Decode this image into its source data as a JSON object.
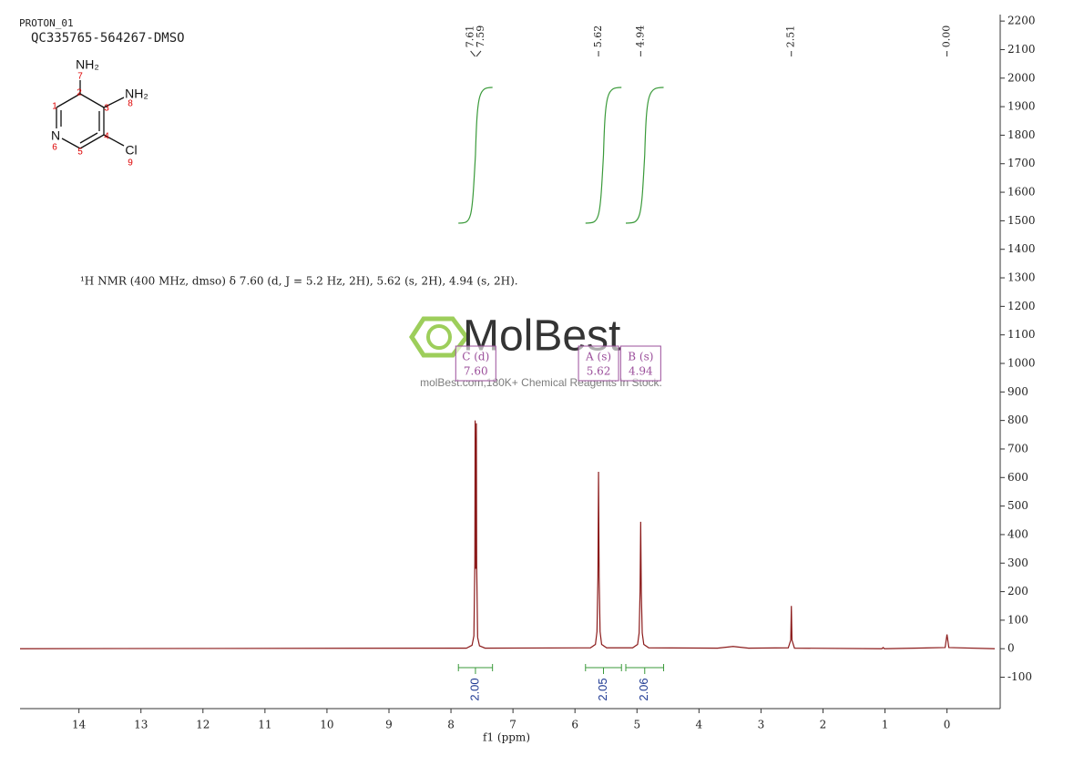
{
  "chart_data": {
    "type": "line",
    "header": "PROTON_01",
    "sample": "QC335765-564267-DMSO",
    "description": "¹H NMR (400 MHz, dmso) δ 7.60 (d, J = 5.2 Hz, 2H), 5.62 (s, 2H), 4.94 (s, 2H).",
    "x_label": "f1  (ppm)",
    "watermark": "MolBest",
    "watermark_subtitle": "molBest.com,180K+ Chemical Reagents In Stock.",
    "color": "#8b1a1a",
    "integral_color": "#3a9a3a",
    "x": [
      14.95,
      7.75,
      7.66,
      7.63,
      7.615,
      7.61,
      7.6,
      7.59,
      7.585,
      7.57,
      7.54,
      7.45,
      5.75,
      5.67,
      5.645,
      5.63,
      5.62,
      5.61,
      5.595,
      5.57,
      5.49,
      5.07,
      4.99,
      4.965,
      4.95,
      4.94,
      4.93,
      4.915,
      4.89,
      4.81,
      3.7,
      3.45,
      3.2,
      2.56,
      2.52,
      2.51,
      2.5,
      2.46,
      1.05,
      1.03,
      1.01,
      0.03,
      0.0,
      -0.03,
      -0.77
    ],
    "values": [
      0,
      2,
      12,
      45,
      300,
      800,
      280,
      790,
      290,
      40,
      10,
      2,
      3,
      15,
      60,
      250,
      620,
      250,
      60,
      15,
      3,
      3,
      15,
      55,
      200,
      445,
      200,
      55,
      15,
      3,
      2,
      8,
      2,
      3,
      30,
      150,
      30,
      2,
      0,
      4,
      0,
      4,
      50,
      4,
      0
    ],
    "xlim": [
      14.95,
      -0.77
    ],
    "xticks": [
      14,
      13,
      12,
      11,
      10,
      9,
      8,
      7,
      6,
      5,
      4,
      3,
      2,
      1,
      0
    ],
    "ylim": [
      -210,
      2210
    ],
    "yticks": [
      -100,
      0,
      100,
      200,
      300,
      400,
      500,
      600,
      700,
      800,
      900,
      1000,
      1100,
      1200,
      1300,
      1400,
      1500,
      1600,
      1700,
      1800,
      1900,
      2000,
      2100,
      2200
    ],
    "peaks": [
      7.61,
      7.59,
      5.62,
      4.94,
      2.51,
      {
        "value": 0,
        "label": "0.00"
      }
    ],
    "integral_ranges": [
      [
        7.88,
        7.33
      ],
      [
        5.83,
        5.25
      ],
      [
        5.18,
        4.57
      ]
    ],
    "integral_values": [
      2,
      2.05,
      2.06
    ],
    "integral_value_labels": [
      "2.00",
      "2.05",
      "2.06"
    ],
    "multiplet_names": [
      "C (d)",
      "A (s)",
      "B (s)"
    ],
    "multiplet_shifts": [
      {
        "value": 7.6,
        "label": "7.60"
      },
      5.62,
      4.94
    ],
    "molecule": {
      "atom_labels": [
        "NH₂",
        "NH₂",
        "N",
        "Cl"
      ],
      "atom_numbers": [
        "1",
        "2",
        "3",
        "4",
        "5",
        "6",
        "7",
        "8",
        "9"
      ]
    }
  }
}
